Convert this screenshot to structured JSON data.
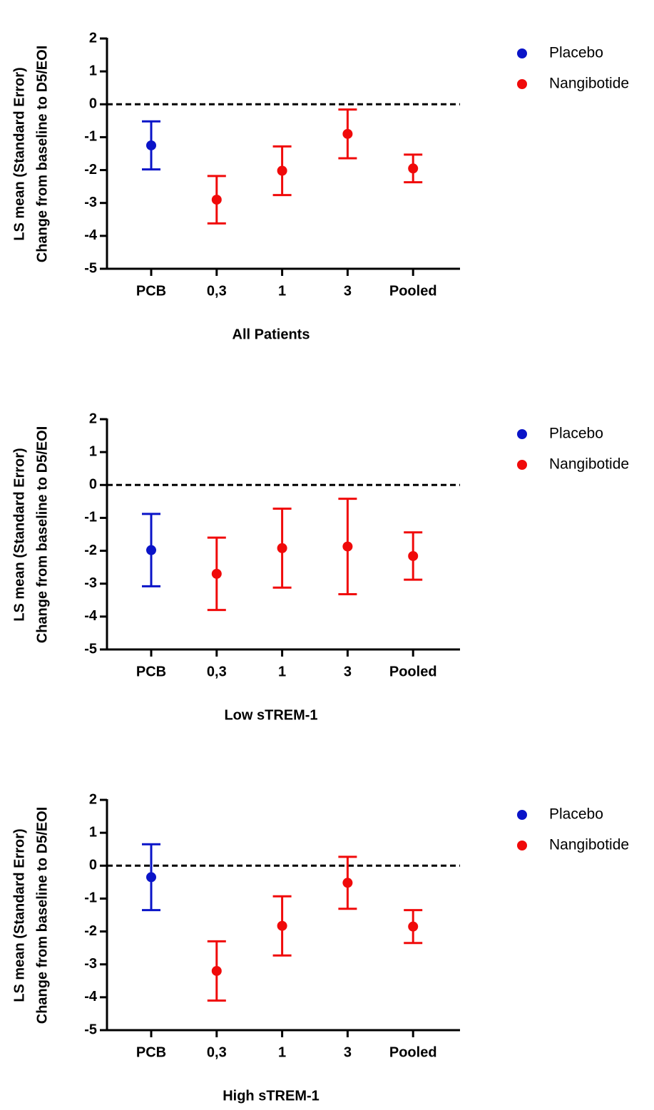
{
  "chart_data": [
    {
      "type": "errorbar",
      "xlabel": "All Patients",
      "ylabel": [
        "LS mean (Standard Error)",
        "Change from baseline to D5/EOI"
      ],
      "categories": [
        "PCB",
        "0,3",
        "1",
        "3",
        "Pooled"
      ],
      "series": [
        {
          "name": "Placebo",
          "color": "#0a14c8",
          "values": [
            -1.25,
            null,
            null,
            null,
            null
          ],
          "errors": [
            0.73,
            null,
            null,
            null,
            null
          ]
        },
        {
          "name": "Nangibotide",
          "color": "#f00a0a",
          "values": [
            null,
            -2.9,
            -2.02,
            -0.9,
            -1.95
          ],
          "errors": [
            null,
            0.72,
            0.74,
            0.74,
            0.42
          ]
        }
      ],
      "ylim": [
        -5,
        2
      ],
      "yticks": [
        -5,
        -4,
        -3,
        -2,
        -1,
        0,
        1,
        2
      ],
      "refline": 0,
      "legend": "right"
    },
    {
      "type": "errorbar",
      "xlabel": "Low sTREM-1",
      "ylabel": [
        "LS mean (Standard Error)",
        "Change from baseline to D5/EOI"
      ],
      "categories": [
        "PCB",
        "0,3",
        "1",
        "3",
        "Pooled"
      ],
      "series": [
        {
          "name": "Placebo",
          "color": "#0a14c8",
          "values": [
            -1.98,
            null,
            null,
            null,
            null
          ],
          "errors": [
            1.1,
            null,
            null,
            null,
            null
          ]
        },
        {
          "name": "Nangibotide",
          "color": "#f00a0a",
          "values": [
            null,
            -2.7,
            -1.92,
            -1.87,
            -2.16
          ],
          "errors": [
            null,
            1.1,
            1.2,
            1.45,
            0.72
          ]
        }
      ],
      "ylim": [
        -5,
        2
      ],
      "yticks": [
        -5,
        -4,
        -3,
        -2,
        -1,
        0,
        1,
        2
      ],
      "refline": 0,
      "legend": "right"
    },
    {
      "type": "errorbar",
      "xlabel": "High sTREM-1",
      "ylabel": [
        "LS mean (Standard Error)",
        "Change from baseline to D5/EOI"
      ],
      "categories": [
        "PCB",
        "0,3",
        "1",
        "3",
        "Pooled"
      ],
      "series": [
        {
          "name": "Placebo",
          "color": "#0a14c8",
          "values": [
            -0.35,
            null,
            null,
            null,
            null
          ],
          "errors": [
            1.0,
            null,
            null,
            null,
            null
          ]
        },
        {
          "name": "Nangibotide",
          "color": "#f00a0a",
          "values": [
            null,
            -3.2,
            -1.83,
            -0.52,
            -1.85
          ],
          "errors": [
            null,
            0.9,
            0.9,
            0.79,
            0.5
          ]
        }
      ],
      "ylim": [
        -5,
        2
      ],
      "yticks": [
        -5,
        -4,
        -3,
        -2,
        -1,
        0,
        1,
        2
      ],
      "refline": 0,
      "legend": "right"
    }
  ]
}
